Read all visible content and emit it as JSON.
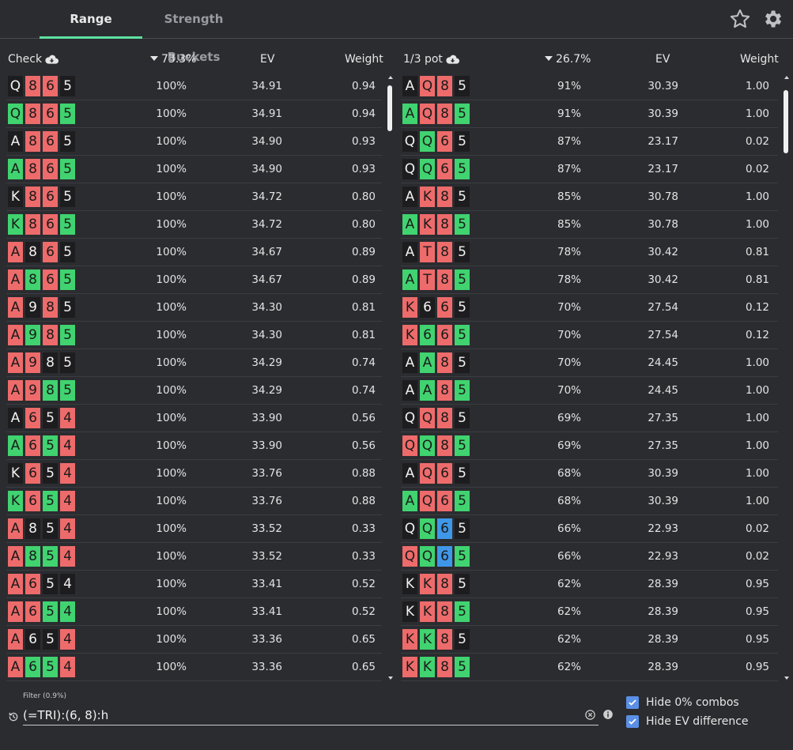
{
  "tabs": [
    {
      "label": "Range",
      "active": true
    },
    {
      "label": "Strength Buckets",
      "active": false
    }
  ],
  "header_icons": [
    "star-icon",
    "gear-icon"
  ],
  "colors": {
    "spade": "#1d1d1f",
    "heart": "#ee6b6b",
    "club": "#40d370",
    "diamond": "#3f97e8",
    "accent": "#5ee0a0"
  },
  "left": {
    "action": "Check",
    "freq": "73.3%",
    "ev_header": "EV",
    "weight_header": "Weight",
    "rows": [
      {
        "cards": [
          [
            "Q",
            "s"
          ],
          [
            "8",
            "h"
          ],
          [
            "6",
            "h"
          ],
          [
            "5",
            "s"
          ]
        ],
        "freq": "100%",
        "ev": "34.91",
        "weight": "0.94"
      },
      {
        "cards": [
          [
            "Q",
            "c"
          ],
          [
            "8",
            "h"
          ],
          [
            "6",
            "h"
          ],
          [
            "5",
            "c"
          ]
        ],
        "freq": "100%",
        "ev": "34.91",
        "weight": "0.94"
      },
      {
        "cards": [
          [
            "A",
            "s"
          ],
          [
            "8",
            "h"
          ],
          [
            "6",
            "h"
          ],
          [
            "5",
            "s"
          ]
        ],
        "freq": "100%",
        "ev": "34.90",
        "weight": "0.93"
      },
      {
        "cards": [
          [
            "A",
            "c"
          ],
          [
            "8",
            "h"
          ],
          [
            "6",
            "h"
          ],
          [
            "5",
            "c"
          ]
        ],
        "freq": "100%",
        "ev": "34.90",
        "weight": "0.93"
      },
      {
        "cards": [
          [
            "K",
            "s"
          ],
          [
            "8",
            "h"
          ],
          [
            "6",
            "h"
          ],
          [
            "5",
            "s"
          ]
        ],
        "freq": "100%",
        "ev": "34.72",
        "weight": "0.80"
      },
      {
        "cards": [
          [
            "K",
            "c"
          ],
          [
            "8",
            "h"
          ],
          [
            "6",
            "h"
          ],
          [
            "5",
            "c"
          ]
        ],
        "freq": "100%",
        "ev": "34.72",
        "weight": "0.80"
      },
      {
        "cards": [
          [
            "A",
            "h"
          ],
          [
            "8",
            "s"
          ],
          [
            "6",
            "h"
          ],
          [
            "5",
            "s"
          ]
        ],
        "freq": "100%",
        "ev": "34.67",
        "weight": "0.89"
      },
      {
        "cards": [
          [
            "A",
            "h"
          ],
          [
            "8",
            "c"
          ],
          [
            "6",
            "h"
          ],
          [
            "5",
            "c"
          ]
        ],
        "freq": "100%",
        "ev": "34.67",
        "weight": "0.89"
      },
      {
        "cards": [
          [
            "A",
            "h"
          ],
          [
            "9",
            "s"
          ],
          [
            "8",
            "h"
          ],
          [
            "5",
            "s"
          ]
        ],
        "freq": "100%",
        "ev": "34.30",
        "weight": "0.81"
      },
      {
        "cards": [
          [
            "A",
            "h"
          ],
          [
            "9",
            "c"
          ],
          [
            "8",
            "h"
          ],
          [
            "5",
            "c"
          ]
        ],
        "freq": "100%",
        "ev": "34.30",
        "weight": "0.81"
      },
      {
        "cards": [
          [
            "A",
            "h"
          ],
          [
            "9",
            "h"
          ],
          [
            "8",
            "s"
          ],
          [
            "5",
            "s"
          ]
        ],
        "freq": "100%",
        "ev": "34.29",
        "weight": "0.74"
      },
      {
        "cards": [
          [
            "A",
            "h"
          ],
          [
            "9",
            "h"
          ],
          [
            "8",
            "c"
          ],
          [
            "5",
            "c"
          ]
        ],
        "freq": "100%",
        "ev": "34.29",
        "weight": "0.74"
      },
      {
        "cards": [
          [
            "A",
            "s"
          ],
          [
            "6",
            "h"
          ],
          [
            "5",
            "s"
          ],
          [
            "4",
            "h"
          ]
        ],
        "freq": "100%",
        "ev": "33.90",
        "weight": "0.56"
      },
      {
        "cards": [
          [
            "A",
            "c"
          ],
          [
            "6",
            "h"
          ],
          [
            "5",
            "c"
          ],
          [
            "4",
            "h"
          ]
        ],
        "freq": "100%",
        "ev": "33.90",
        "weight": "0.56"
      },
      {
        "cards": [
          [
            "K",
            "s"
          ],
          [
            "6",
            "h"
          ],
          [
            "5",
            "s"
          ],
          [
            "4",
            "h"
          ]
        ],
        "freq": "100%",
        "ev": "33.76",
        "weight": "0.88"
      },
      {
        "cards": [
          [
            "K",
            "c"
          ],
          [
            "6",
            "h"
          ],
          [
            "5",
            "c"
          ],
          [
            "4",
            "h"
          ]
        ],
        "freq": "100%",
        "ev": "33.76",
        "weight": "0.88"
      },
      {
        "cards": [
          [
            "A",
            "h"
          ],
          [
            "8",
            "s"
          ],
          [
            "5",
            "s"
          ],
          [
            "4",
            "h"
          ]
        ],
        "freq": "100%",
        "ev": "33.52",
        "weight": "0.33"
      },
      {
        "cards": [
          [
            "A",
            "h"
          ],
          [
            "8",
            "c"
          ],
          [
            "5",
            "c"
          ],
          [
            "4",
            "h"
          ]
        ],
        "freq": "100%",
        "ev": "33.52",
        "weight": "0.33"
      },
      {
        "cards": [
          [
            "A",
            "h"
          ],
          [
            "6",
            "h"
          ],
          [
            "5",
            "s"
          ],
          [
            "4",
            "s"
          ]
        ],
        "freq": "100%",
        "ev": "33.41",
        "weight": "0.52"
      },
      {
        "cards": [
          [
            "A",
            "h"
          ],
          [
            "6",
            "h"
          ],
          [
            "5",
            "c"
          ],
          [
            "4",
            "c"
          ]
        ],
        "freq": "100%",
        "ev": "33.41",
        "weight": "0.52"
      },
      {
        "cards": [
          [
            "A",
            "h"
          ],
          [
            "6",
            "s"
          ],
          [
            "5",
            "s"
          ],
          [
            "4",
            "h"
          ]
        ],
        "freq": "100%",
        "ev": "33.36",
        "weight": "0.65"
      },
      {
        "cards": [
          [
            "A",
            "h"
          ],
          [
            "6",
            "c"
          ],
          [
            "5",
            "c"
          ],
          [
            "4",
            "h"
          ]
        ],
        "freq": "100%",
        "ev": "33.36",
        "weight": "0.65"
      }
    ]
  },
  "right": {
    "action": "1/3 pot",
    "freq": "26.7%",
    "ev_header": "EV",
    "weight_header": "Weight",
    "rows": [
      {
        "cards": [
          [
            "A",
            "s"
          ],
          [
            "Q",
            "h"
          ],
          [
            "8",
            "h"
          ],
          [
            "5",
            "s"
          ]
        ],
        "freq": "91%",
        "ev": "30.39",
        "weight": "1.00"
      },
      {
        "cards": [
          [
            "A",
            "c"
          ],
          [
            "Q",
            "h"
          ],
          [
            "8",
            "h"
          ],
          [
            "5",
            "c"
          ]
        ],
        "freq": "91%",
        "ev": "30.39",
        "weight": "1.00"
      },
      {
        "cards": [
          [
            "Q",
            "s"
          ],
          [
            "Q",
            "c"
          ],
          [
            "6",
            "h"
          ],
          [
            "5",
            "s"
          ]
        ],
        "freq": "87%",
        "ev": "23.17",
        "weight": "0.02"
      },
      {
        "cards": [
          [
            "Q",
            "s"
          ],
          [
            "Q",
            "c"
          ],
          [
            "6",
            "h"
          ],
          [
            "5",
            "c"
          ]
        ],
        "freq": "87%",
        "ev": "23.17",
        "weight": "0.02"
      },
      {
        "cards": [
          [
            "A",
            "s"
          ],
          [
            "K",
            "h"
          ],
          [
            "8",
            "h"
          ],
          [
            "5",
            "s"
          ]
        ],
        "freq": "85%",
        "ev": "30.78",
        "weight": "1.00"
      },
      {
        "cards": [
          [
            "A",
            "c"
          ],
          [
            "K",
            "h"
          ],
          [
            "8",
            "h"
          ],
          [
            "5",
            "c"
          ]
        ],
        "freq": "85%",
        "ev": "30.78",
        "weight": "1.00"
      },
      {
        "cards": [
          [
            "A",
            "s"
          ],
          [
            "T",
            "h"
          ],
          [
            "8",
            "h"
          ],
          [
            "5",
            "s"
          ]
        ],
        "freq": "78%",
        "ev": "30.42",
        "weight": "0.81"
      },
      {
        "cards": [
          [
            "A",
            "c"
          ],
          [
            "T",
            "h"
          ],
          [
            "8",
            "h"
          ],
          [
            "5",
            "c"
          ]
        ],
        "freq": "78%",
        "ev": "30.42",
        "weight": "0.81"
      },
      {
        "cards": [
          [
            "K",
            "h"
          ],
          [
            "6",
            "s"
          ],
          [
            "6",
            "h"
          ],
          [
            "5",
            "s"
          ]
        ],
        "freq": "70%",
        "ev": "27.54",
        "weight": "0.12"
      },
      {
        "cards": [
          [
            "K",
            "h"
          ],
          [
            "6",
            "c"
          ],
          [
            "6",
            "h"
          ],
          [
            "5",
            "c"
          ]
        ],
        "freq": "70%",
        "ev": "27.54",
        "weight": "0.12"
      },
      {
        "cards": [
          [
            "A",
            "s"
          ],
          [
            "A",
            "c"
          ],
          [
            "8",
            "h"
          ],
          [
            "5",
            "s"
          ]
        ],
        "freq": "70%",
        "ev": "24.45",
        "weight": "1.00"
      },
      {
        "cards": [
          [
            "A",
            "s"
          ],
          [
            "A",
            "c"
          ],
          [
            "8",
            "h"
          ],
          [
            "5",
            "c"
          ]
        ],
        "freq": "70%",
        "ev": "24.45",
        "weight": "1.00"
      },
      {
        "cards": [
          [
            "Q",
            "s"
          ],
          [
            "Q",
            "h"
          ],
          [
            "8",
            "h"
          ],
          [
            "5",
            "s"
          ]
        ],
        "freq": "69%",
        "ev": "27.35",
        "weight": "1.00"
      },
      {
        "cards": [
          [
            "Q",
            "h"
          ],
          [
            "Q",
            "c"
          ],
          [
            "8",
            "h"
          ],
          [
            "5",
            "c"
          ]
        ],
        "freq": "69%",
        "ev": "27.35",
        "weight": "1.00"
      },
      {
        "cards": [
          [
            "A",
            "s"
          ],
          [
            "Q",
            "h"
          ],
          [
            "6",
            "h"
          ],
          [
            "5",
            "s"
          ]
        ],
        "freq": "68%",
        "ev": "30.39",
        "weight": "1.00"
      },
      {
        "cards": [
          [
            "A",
            "c"
          ],
          [
            "Q",
            "h"
          ],
          [
            "6",
            "h"
          ],
          [
            "5",
            "c"
          ]
        ],
        "freq": "68%",
        "ev": "30.39",
        "weight": "1.00"
      },
      {
        "cards": [
          [
            "Q",
            "s"
          ],
          [
            "Q",
            "c"
          ],
          [
            "6",
            "d"
          ],
          [
            "5",
            "s"
          ]
        ],
        "freq": "66%",
        "ev": "22.93",
        "weight": "0.02"
      },
      {
        "cards": [
          [
            "Q",
            "h"
          ],
          [
            "Q",
            "c"
          ],
          [
            "6",
            "d"
          ],
          [
            "5",
            "c"
          ]
        ],
        "freq": "66%",
        "ev": "22.93",
        "weight": "0.02"
      },
      {
        "cards": [
          [
            "K",
            "s"
          ],
          [
            "K",
            "h"
          ],
          [
            "8",
            "h"
          ],
          [
            "5",
            "s"
          ]
        ],
        "freq": "62%",
        "ev": "28.39",
        "weight": "0.95"
      },
      {
        "cards": [
          [
            "K",
            "s"
          ],
          [
            "K",
            "h"
          ],
          [
            "8",
            "h"
          ],
          [
            "5",
            "c"
          ]
        ],
        "freq": "62%",
        "ev": "28.39",
        "weight": "0.95"
      },
      {
        "cards": [
          [
            "K",
            "h"
          ],
          [
            "K",
            "c"
          ],
          [
            "8",
            "h"
          ],
          [
            "5",
            "s"
          ]
        ],
        "freq": "62%",
        "ev": "28.39",
        "weight": "0.95"
      },
      {
        "cards": [
          [
            "K",
            "h"
          ],
          [
            "K",
            "c"
          ],
          [
            "8",
            "h"
          ],
          [
            "5",
            "c"
          ]
        ],
        "freq": "62%",
        "ev": "28.39",
        "weight": "0.95"
      }
    ]
  },
  "filter": {
    "label": "Filter (0.9%)",
    "value": "(=TRI):(6, 8):h"
  },
  "options": {
    "hide_zero": "Hide 0% combos",
    "hide_ev": "Hide EV difference"
  }
}
